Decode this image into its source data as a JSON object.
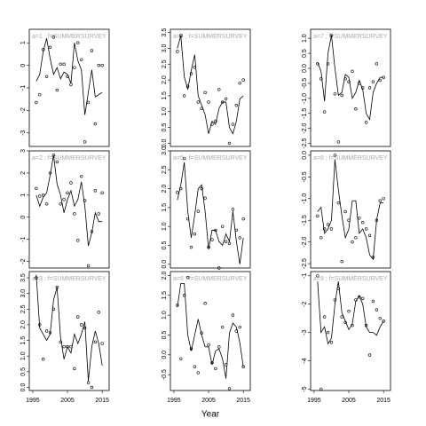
{
  "chart_data": [
    {
      "type": "line",
      "label": "a=1 ; f=SUMMERSURVEY",
      "x": [
        1996,
        1997,
        1998,
        1999,
        2000,
        2001,
        2002,
        2003,
        2004,
        2005,
        2006,
        2007,
        2008,
        2009,
        2010,
        2011,
        2012,
        2013,
        2014,
        2015
      ],
      "xlim": [
        1994,
        2017
      ],
      "ylim": [
        -3.6,
        1.6
      ],
      "yticks": [
        -3,
        -2,
        -1,
        0,
        1
      ],
      "series": [
        {
          "type": "scatter",
          "color": "#000000",
          "values": [
            -1.65,
            -1.3,
            0.7,
            -0.5,
            0.8,
            1.25,
            -1.1,
            0.05,
            0.05,
            -0.5,
            -0.85,
            -0.1,
            1.0,
            0.25,
            -3.4,
            -1.65,
            0.65,
            -2.6,
            0,
            0
          ]
        },
        {
          "type": "line",
          "color": "#000000",
          "values": [
            -0.7,
            -0.4,
            0.6,
            1.2,
            0.3,
            -0.4,
            -0.1,
            -0.6,
            -0.3,
            -0.4,
            -0.8,
            1.0,
            0.2,
            -0.2,
            -2.2,
            -1.2,
            -0.2,
            -1.4,
            -1.3,
            -1.2
          ]
        }
      ]
    },
    {
      "type": "line",
      "label": "a=2 ; f=SUMMERSURVEY",
      "x": [
        1996,
        1997,
        1998,
        1999,
        2000,
        2001,
        2002,
        2003,
        2004,
        2005,
        2006,
        2007,
        2008,
        2009,
        2010,
        2011,
        2012,
        2013,
        2014,
        2015
      ],
      "xlim": [
        1994,
        2017
      ],
      "ylim": [
        -2.3,
        3.0
      ],
      "yticks": [
        -2,
        -1,
        0,
        1,
        2,
        3
      ],
      "series": [
        {
          "type": "scatter",
          "color": "#000000",
          "values": [
            1.3,
            0.95,
            1.0,
            0.6,
            2.0,
            2.8,
            2.5,
            0.6,
            0.8,
            1.1,
            1.55,
            0.15,
            -1.05,
            1.85,
            0.75,
            -2.2,
            -0.65,
            1.2,
            0.15,
            1.1
          ]
        },
        {
          "type": "line",
          "color": "#000000",
          "values": [
            1.0,
            0.5,
            0.9,
            1.1,
            1.9,
            2.8,
            1.5,
            1.0,
            0.2,
            0.8,
            1.2,
            0.5,
            0.8,
            1.6,
            0.5,
            -1.3,
            -0.7,
            0.2,
            -0.2,
            -0.2
          ]
        }
      ]
    },
    {
      "type": "line",
      "label": "a=3 ; f=SUMMERSURVEY",
      "x": [
        1996,
        1997,
        1998,
        1999,
        2000,
        2001,
        2002,
        2003,
        2004,
        2005,
        2006,
        2007,
        2008,
        2009,
        2010,
        2011,
        2012,
        2013,
        2014,
        2015
      ],
      "xlim": [
        1994,
        2017
      ],
      "xticks": [
        1995,
        2005,
        2015
      ],
      "ylim": [
        -0.1,
        3.7
      ],
      "yticks": [
        {
          "value": 0,
          "label": "0.0"
        },
        0.5,
        {
          "value": 1,
          "label": "1.0"
        },
        1.5,
        {
          "value": 2,
          "label": "2.0"
        },
        2.5,
        {
          "value": 3,
          "label": "3.0"
        },
        3.5
      ],
      "series": [
        {
          "type": "scatter",
          "color": "#000000",
          "values": [
            3.5,
            2.0,
            0.9,
            1.8,
            1.75,
            2.5,
            3.2,
            1.45,
            1.3,
            1.3,
            1.3,
            0.6,
            2.25,
            2.0,
            1.9,
            0.15,
            0.0,
            1.45,
            2.4,
            1.4
          ]
        },
        {
          "type": "line",
          "color": "#000000",
          "values": [
            3.6,
            1.9,
            1.7,
            1.5,
            1.7,
            2.8,
            3.2,
            1.6,
            0.9,
            1.3,
            1.1,
            1.7,
            1.4,
            1.7,
            2.1,
            0.2,
            1.3,
            1.8,
            1.4,
            0.7
          ]
        }
      ]
    },
    {
      "type": "line",
      "label": "a=4 ; f=SUMMERSURVEY",
      "x": [
        1996,
        1997,
        1998,
        1999,
        2000,
        2001,
        2002,
        2003,
        2004,
        2005,
        2006,
        2007,
        2008,
        2009,
        2010,
        2011,
        2012,
        2013,
        2014,
        2015
      ],
      "xlim": [
        1994,
        2017
      ],
      "ylim": [
        -0.1,
        3.6
      ],
      "yticks": [
        {
          "value": 0,
          "label": "0.0"
        },
        0.5,
        {
          "value": 1,
          "label": "1.0"
        },
        1.5,
        {
          "value": 2,
          "label": "2.0"
        },
        2.5,
        {
          "value": 3,
          "label": "3.0"
        },
        3.5
      ],
      "series": [
        {
          "type": "scatter",
          "color": "#000000",
          "values": [
            2.9,
            3.4,
            1.5,
            1.8,
            2.2,
            2.4,
            1.3,
            1.1,
            1.6,
            1.3,
            0.6,
            0.7,
            1.7,
            1.3,
            1.4,
            0.0,
            0.6,
            1.2,
            1.9,
            2.0
          ]
        },
        {
          "type": "line",
          "color": "#000000",
          "values": [
            3.0,
            3.4,
            2.1,
            1.7,
            2.3,
            2.8,
            1.5,
            1.2,
            0.9,
            0.3,
            0.7,
            0.6,
            1.1,
            1.3,
            1.3,
            0.5,
            0.3,
            0.7,
            1.4,
            1.5
          ]
        }
      ]
    },
    {
      "type": "line",
      "label": "a=5 ; f=SUMMERSURVEY",
      "x": [
        1996,
        1997,
        1998,
        1999,
        2000,
        2001,
        2002,
        2003,
        2004,
        2005,
        2006,
        2007,
        2008,
        2009,
        2010,
        2011,
        2012,
        2013,
        2014,
        2015
      ],
      "xlim": [
        1994,
        2017
      ],
      "ylim": [
        -0.1,
        3.0
      ],
      "yticks": [
        {
          "value": 0,
          "label": "0.0"
        },
        0.5,
        {
          "value": 1,
          "label": "1.0"
        },
        1.5,
        {
          "value": 2,
          "label": "2.0"
        },
        2.5,
        {
          "value": 3,
          "label": "3.0"
        }
      ],
      "series": [
        {
          "type": "scatter",
          "color": "#000000",
          "values": [
            1.9,
            2.0,
            2.8,
            1.2,
            0.45,
            0.8,
            1.4,
            2.0,
            1.75,
            0.45,
            0.65,
            0.9,
            -0.1,
            1.0,
            0.6,
            0.55,
            1.45,
            0.9,
            0.7,
            1.2
          ]
        },
        {
          "type": "line",
          "color": "#000000",
          "values": [
            1.7,
            2.1,
            2.7,
            1.4,
            0.7,
            1.3,
            2.0,
            2.1,
            1.4,
            0.4,
            0.9,
            0.9,
            0.6,
            0.5,
            0.8,
            0.6,
            1.4,
            0.6,
            0.0,
            0.7
          ]
        }
      ]
    },
    {
      "type": "line",
      "label": "a=6 ; f=SUMMERSURVEY",
      "xlabel": "Year",
      "x": [
        1996,
        1997,
        1998,
        1999,
        2000,
        2001,
        2002,
        2003,
        2004,
        2005,
        2006,
        2007,
        2008,
        2009,
        2010,
        2011,
        2012,
        2013,
        2014,
        2015
      ],
      "xlim": [
        1994,
        2017
      ],
      "xticks": [
        1995,
        2005,
        2015
      ],
      "ylim": [
        -0.9,
        2.1
      ],
      "yticks": [
        -0.5,
        {
          "value": 0,
          "label": "0.0"
        },
        0.5,
        {
          "value": 1,
          "label": "1.0"
        },
        1.5,
        {
          "value": 2,
          "label": "2.0"
        }
      ],
      "series": [
        {
          "type": "scatter",
          "color": "#000000",
          "values": [
            1.25,
            -0.1,
            1.5,
            1.95,
            0.15,
            -0.3,
            -0.45,
            0.55,
            1.3,
            0.25,
            -0.2,
            -0.35,
            0.2,
            0.7,
            -0.25,
            -0.85,
            1.0,
            0.6,
            0.7,
            -0.3
          ]
        },
        {
          "type": "line",
          "color": "#000000",
          "values": [
            1.2,
            1.8,
            1.8,
            0.5,
            0.1,
            0.5,
            0.9,
            0.5,
            0.2,
            0.2,
            -0.25,
            0.1,
            0.15,
            -0.1,
            -0.6,
            0.55,
            0.8,
            0.7,
            0.3,
            -0.3
          ]
        }
      ]
    },
    {
      "type": "line",
      "label": "a=7 ; f=SUMMERSURVEY",
      "x": [
        1996,
        1997,
        1998,
        1999,
        2000,
        2001,
        2002,
        2003,
        2004,
        2005,
        2006,
        2007,
        2008,
        2009,
        2010,
        2011,
        2012,
        2013,
        2014,
        2015
      ],
      "xlim": [
        1994,
        2017
      ],
      "ylim": [
        -2.6,
        1.3
      ],
      "yticks": [
        -2.5,
        {
          "value": -2,
          "label": "-2.0"
        },
        -1.5,
        {
          "value": -1,
          "label": "-1.0"
        },
        -0.5,
        {
          "value": 0,
          "label": "0.0"
        },
        0.5,
        {
          "value": 1,
          "label": "1.0"
        }
      ],
      "series": [
        {
          "type": "scatter",
          "color": "#000000",
          "values": [
            0.15,
            -0.35,
            -1.45,
            0.15,
            1.1,
            -0.85,
            -2.45,
            -0.9,
            -0.35,
            -0.45,
            -0.1,
            -1.35,
            -0.5,
            -0.65,
            -1.8,
            -0.65,
            -0.45,
            0.15,
            -0.4,
            -0.3
          ]
        },
        {
          "type": "line",
          "color": "#000000",
          "values": [
            0.2,
            -0.1,
            -1.1,
            0.5,
            1.1,
            0.0,
            -0.9,
            -0.8,
            -0.2,
            -0.3,
            -1.0,
            -0.8,
            -0.4,
            -0.7,
            -1.5,
            -1.7,
            -0.8,
            -0.5,
            -0.3,
            -0.3
          ]
        }
      ]
    },
    {
      "type": "line",
      "label": "a=8 ; f=SUMMERSURVEY",
      "x": [
        1996,
        1997,
        1998,
        1999,
        2000,
        2001,
        2002,
        2003,
        2004,
        2005,
        2006,
        2007,
        2008,
        2009,
        2010,
        2011,
        2012,
        2013,
        2014,
        2015
      ],
      "xlim": [
        1994,
        2017
      ],
      "ylim": [
        -2.6,
        0.1
      ],
      "yticks": [
        -2.5,
        {
          "value": -2,
          "label": "-2.0"
        },
        -1.5,
        {
          "value": -1,
          "label": "-1.0"
        },
        -0.5,
        {
          "value": 0,
          "label": "0.0"
        }
      ],
      "series": [
        {
          "type": "scatter",
          "color": "#000000",
          "values": [
            -1.4,
            -1.9,
            -1.7,
            -1.6,
            -1.7,
            0.0,
            -1.1,
            -2.45,
            -1.3,
            -1.5,
            -2.0,
            -1.9,
            -1.45,
            -1.55,
            -1.7,
            -1.85,
            -2.35,
            -1.5,
            -1.05,
            -1.0
          ]
        },
        {
          "type": "line",
          "color": "#000000",
          "values": [
            -1.3,
            -1.2,
            -1.8,
            -1.7,
            -1.5,
            -0.1,
            -0.8,
            -1.4,
            -1.9,
            -1.7,
            -1.05,
            -1.05,
            -1.8,
            -1.7,
            -1.9,
            -2.3,
            -2.4,
            -1.5,
            -1.1,
            -1.1
          ]
        }
      ]
    },
    {
      "type": "line",
      "label": "a=9 ; f=SUMMERSURVEY",
      "x": [
        1996,
        1997,
        1998,
        1999,
        2000,
        2001,
        2002,
        2003,
        2004,
        2005,
        2006,
        2007,
        2008,
        2009,
        2010,
        2011,
        2012,
        2013,
        2014,
        2015
      ],
      "xlim": [
        1994,
        2017
      ],
      "xticks": [
        1995,
        2005,
        2015
      ],
      "ylim": [
        -5.05,
        -0.85
      ],
      "yticks": [
        -5,
        -4,
        -3,
        -2,
        -1
      ],
      "series": [
        {
          "type": "scatter",
          "color": "#000000",
          "values": [
            -1.0,
            -5.0,
            -2.45,
            -3.0,
            -3.35,
            -1.85,
            -1.45,
            -2.45,
            -2.65,
            -2.25,
            -2.75,
            -1.85,
            -1.75,
            -1.8,
            -2.75,
            -3.8,
            -1.9,
            -2.2,
            -2.5,
            -2.6
          ]
        },
        {
          "type": "line",
          "color": "#000000",
          "values": [
            -1.2,
            -3.0,
            -2.8,
            -3.4,
            -3.2,
            -2.0,
            -1.2,
            -2.3,
            -2.6,
            -2.9,
            -2.7,
            -1.9,
            -1.7,
            -2.0,
            -2.8,
            -3.0,
            -3.0,
            -3.1,
            -2.8,
            -2.6
          ]
        }
      ]
    }
  ]
}
